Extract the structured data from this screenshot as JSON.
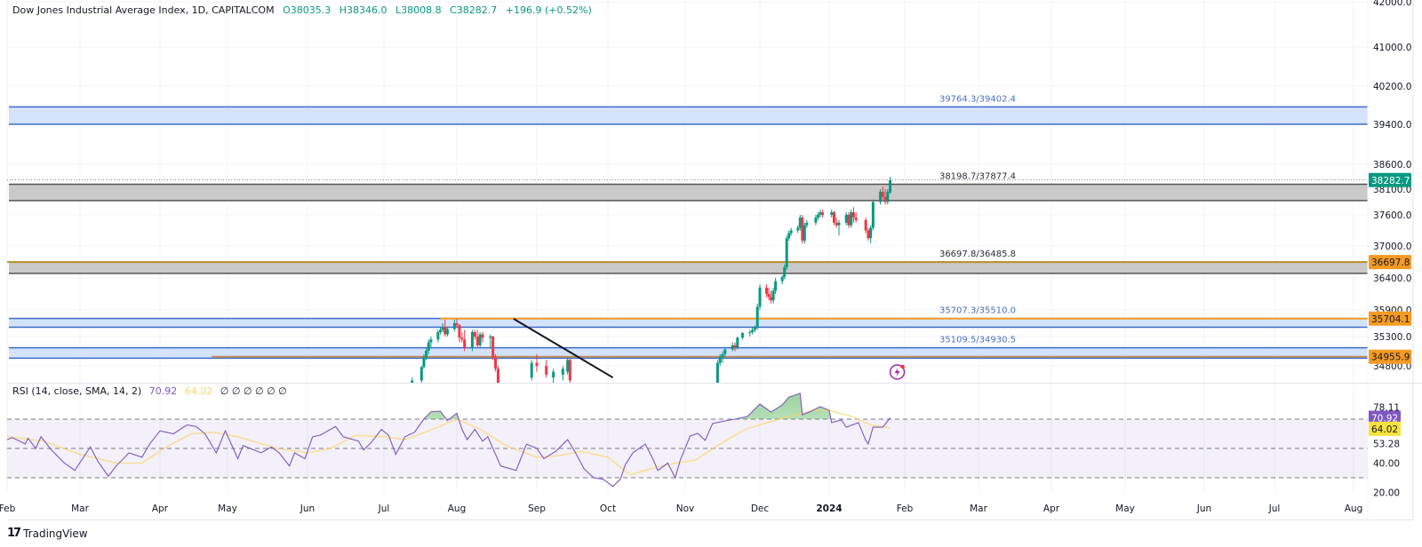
{
  "header": {
    "title": "Dow Jones Industrial Average Index, 1D, CAPITALCOM",
    "open": "O38035.3",
    "high": "H38346.0",
    "low": "L38008.8",
    "close": "C38282.7",
    "change": "+196.9 (+0.52%)"
  },
  "footer": {
    "brand": "TradingView",
    "logo": "TV"
  },
  "colors": {
    "up": "#089981",
    "down": "#f23645",
    "rsi": "#7e57c2",
    "rsi_sma": "#f5d76e",
    "zone_blue": "#3d6bc9",
    "zone_gray": "#555555",
    "orange": "#f59a23"
  },
  "chart_data": {
    "type": "candlestick",
    "title": "Dow Jones Industrial Average Index, 1D, CAPITALCOM",
    "price_axis": {
      "ticks": [
        "42000.0",
        "41000.0",
        "40200.0",
        "39400.0",
        "38600.0",
        "38100.0",
        "37600.0",
        "37000.0",
        "36400.0",
        "35900.0",
        "35300.0",
        "34800.0"
      ],
      "scale": "log-like",
      "range": [
        34600,
        42050
      ]
    },
    "time_axis": {
      "labels": [
        "Feb",
        "Mar",
        "Apr",
        "May",
        "Jun",
        "Jul",
        "Aug",
        "Sep",
        "Oct",
        "Nov",
        "Dec",
        "2024",
        "Feb",
        "Mar",
        "Apr",
        "May",
        "Jun",
        "Jul",
        "Aug"
      ]
    },
    "grid": true,
    "last_price": {
      "value": "38282.7",
      "color": "#089981"
    },
    "zones": [
      {
        "label": "39764.3/39402.4",
        "top": 39764.3,
        "bottom": 39402.4,
        "style": "blue"
      },
      {
        "label": "38198.7/37877.4",
        "top": 38198.7,
        "bottom": 37877.4,
        "style": "gray"
      },
      {
        "label": "36697.8/36485.8",
        "top": 36697.8,
        "bottom": 36485.8,
        "style": "gray"
      },
      {
        "label": "35707.3/35510.0",
        "top": 35707.3,
        "bottom": 35510.0,
        "style": "blue"
      },
      {
        "label": "35109.5/34930.5",
        "top": 35109.5,
        "bottom": 34930.5,
        "style": "blue"
      }
    ],
    "horizontal_lines": [
      {
        "price": 36697.8,
        "label": "36697.8",
        "color": "#b8902a",
        "from": "2023-02-01"
      },
      {
        "price": 35704.1,
        "label": "35704.1",
        "color": "#f59a23",
        "from": "2023-07-25"
      },
      {
        "price": 34955.9,
        "label": "34955.9",
        "color": "#c28d55",
        "from": "2023-04-24"
      }
    ],
    "trendline": {
      "from": [
        "2023-08-23",
        35700
      ],
      "to": [
        "2023-10-03",
        34600
      ],
      "color": "#131722"
    },
    "candles": [
      [
        "2023-07-13",
        34400,
        34600,
        34350,
        34550
      ],
      [
        "2023-07-17",
        34550,
        34800,
        34500,
        34780
      ],
      [
        "2023-07-18",
        34780,
        35000,
        34750,
        34950
      ],
      [
        "2023-07-19",
        34950,
        35100,
        34900,
        35060
      ],
      [
        "2023-07-20",
        35060,
        35250,
        35000,
        35200
      ],
      [
        "2023-07-21",
        35200,
        35300,
        35100,
        35250
      ],
      [
        "2023-07-24",
        35250,
        35450,
        35200,
        35400
      ],
      [
        "2023-07-25",
        35400,
        35500,
        35350,
        35450
      ],
      [
        "2023-07-26",
        35450,
        35600,
        35400,
        35520
      ],
      [
        "2023-07-27",
        35520,
        35680,
        35300,
        35350
      ],
      [
        "2023-07-28",
        35350,
        35500,
        35300,
        35470
      ],
      [
        "2023-07-31",
        35470,
        35680,
        35420,
        35600
      ],
      [
        "2023-08-01",
        35600,
        35700,
        35500,
        35560
      ],
      [
        "2023-08-02",
        35560,
        35580,
        35200,
        35280
      ],
      [
        "2023-08-03",
        35280,
        35400,
        35200,
        35250
      ],
      [
        "2023-08-04",
        35250,
        35450,
        35050,
        35100
      ],
      [
        "2023-08-07",
        35100,
        35450,
        35050,
        35400
      ],
      [
        "2023-08-08",
        35400,
        35450,
        35250,
        35300
      ],
      [
        "2023-08-09",
        35300,
        35450,
        35100,
        35150
      ],
      [
        "2023-08-10",
        35150,
        35400,
        35100,
        35350
      ],
      [
        "2023-08-11",
        35350,
        35400,
        35200,
        35280
      ],
      [
        "2023-08-14",
        35280,
        35350,
        35100,
        35300
      ],
      [
        "2023-08-15",
        35300,
        35320,
        34900,
        34950
      ],
      [
        "2023-08-16",
        34950,
        35000,
        34700,
        34750
      ],
      [
        "2023-08-17",
        34750,
        34800,
        34400,
        34500
      ],
      [
        "2023-08-30",
        34600,
        34900,
        34550,
        34850
      ],
      [
        "2023-09-01",
        34850,
        35000,
        34700,
        34800
      ],
      [
        "2023-09-05",
        34800,
        34900,
        34600,
        34650
      ],
      [
        "2023-09-08",
        34600,
        34750,
        34500,
        34700
      ],
      [
        "2023-09-12",
        34650,
        34800,
        34550,
        34750
      ],
      [
        "2023-09-14",
        34700,
        34950,
        34650,
        34900
      ],
      [
        "2023-09-15",
        34900,
        34920,
        34500,
        34550
      ],
      [
        "2023-11-14",
        34300,
        34900,
        34250,
        34850
      ],
      [
        "2023-11-15",
        34850,
        35000,
        34800,
        34950
      ],
      [
        "2023-11-16",
        34950,
        35050,
        34850,
        35000
      ],
      [
        "2023-11-17",
        35000,
        35100,
        34950,
        35080
      ],
      [
        "2023-11-20",
        35080,
        35200,
        35050,
        35150
      ],
      [
        "2023-11-21",
        35150,
        35200,
        35050,
        35100
      ],
      [
        "2023-11-22",
        35100,
        35300,
        35080,
        35280
      ],
      [
        "2023-11-24",
        35280,
        35400,
        35250,
        35380
      ],
      [
        "2023-11-27",
        35380,
        35450,
        35300,
        35400
      ],
      [
        "2023-11-28",
        35400,
        35500,
        35350,
        35450
      ],
      [
        "2023-11-29",
        35450,
        35550,
        35400,
        35500
      ],
      [
        "2023-11-30",
        35500,
        36000,
        35450,
        35950
      ],
      [
        "2023-12-01",
        35950,
        36300,
        35900,
        36250
      ],
      [
        "2023-12-04",
        36250,
        36300,
        36100,
        36150
      ],
      [
        "2023-12-05",
        36150,
        36250,
        36050,
        36100
      ],
      [
        "2023-12-06",
        36100,
        36200,
        36000,
        36050
      ],
      [
        "2023-12-07",
        36050,
        36250,
        36000,
        36200
      ],
      [
        "2023-12-08",
        36200,
        36400,
        36150,
        36350
      ],
      [
        "2023-12-11",
        36350,
        36450,
        36300,
        36420
      ],
      [
        "2023-12-12",
        36420,
        36650,
        36380,
        36600
      ],
      [
        "2023-12-13",
        36600,
        37200,
        36550,
        37150
      ],
      [
        "2023-12-14",
        37150,
        37300,
        37100,
        37250
      ],
      [
        "2023-12-15",
        37250,
        37350,
        37200,
        37300
      ],
      [
        "2023-12-18",
        37300,
        37400,
        37250,
        37350
      ],
      [
        "2023-12-19",
        37350,
        37600,
        37300,
        37550
      ],
      [
        "2023-12-20",
        37550,
        37600,
        37050,
        37100
      ],
      [
        "2023-12-21",
        37100,
        37450,
        37050,
        37400
      ],
      [
        "2023-12-22",
        37400,
        37500,
        37350,
        37450
      ],
      [
        "2023-12-26",
        37450,
        37600,
        37400,
        37550
      ],
      [
        "2023-12-27",
        37550,
        37650,
        37500,
        37600
      ],
      [
        "2023-12-28",
        37600,
        37700,
        37550,
        37650
      ],
      [
        "2023-12-29",
        37650,
        37700,
        37550,
        37600
      ],
      [
        "2024-01-02",
        37600,
        37700,
        37550,
        37650
      ],
      [
        "2024-01-03",
        37650,
        37680,
        37400,
        37450
      ],
      [
        "2024-01-04",
        37450,
        37550,
        37350,
        37400
      ],
      [
        "2024-01-05",
        37400,
        37500,
        37200,
        37450
      ],
      [
        "2024-01-08",
        37450,
        37650,
        37400,
        37600
      ],
      [
        "2024-01-09",
        37600,
        37650,
        37350,
        37400
      ],
      [
        "2024-01-10",
        37400,
        37700,
        37350,
        37650
      ],
      [
        "2024-01-11",
        37650,
        37750,
        37450,
        37550
      ],
      [
        "2024-01-12",
        37550,
        37650,
        37450,
        37500
      ],
      [
        "2024-01-16",
        37500,
        37550,
        37250,
        37300
      ],
      [
        "2024-01-17",
        37300,
        37350,
        37100,
        37150
      ],
      [
        "2024-01-18",
        37150,
        37400,
        37050,
        37350
      ],
      [
        "2024-01-19",
        37350,
        37900,
        37300,
        37850
      ],
      [
        "2024-01-22",
        37850,
        38100,
        37800,
        38050
      ],
      [
        "2024-01-23",
        38050,
        38150,
        37900,
        37950
      ],
      [
        "2024-01-24",
        37950,
        38100,
        37800,
        37850
      ],
      [
        "2024-01-25",
        37850,
        38100,
        37800,
        38050
      ],
      [
        "2024-01-26",
        38035.3,
        38346.0,
        38008.8,
        38282.7
      ]
    ],
    "rsi": {
      "legend": "RSI (14, close, SMA, 14, 2)",
      "value": "70.92",
      "sma_value": "64.02",
      "extra": "∅ ∅ ∅ ∅ ∅ ∅",
      "axis_ticks": [
        "78.11",
        "53.28",
        "40.00",
        "20.00"
      ],
      "levels": [
        70,
        50,
        30
      ],
      "range": [
        15,
        95
      ],
      "values": [
        [
          "2023-02-01",
          56
        ],
        [
          "2023-02-03",
          57.4
        ],
        [
          "2023-02-08",
          53
        ],
        [
          "2023-02-09",
          57
        ],
        [
          "2023-02-12",
          50
        ],
        [
          "2023-02-14",
          58
        ],
        [
          "2023-02-18",
          49
        ],
        [
          "2023-02-23",
          40
        ],
        [
          "2023-02-27",
          35
        ],
        [
          "2023-03-05",
          51
        ],
        [
          "2023-03-08",
          41
        ],
        [
          "2023-03-12",
          31
        ],
        [
          "2023-03-15",
          38
        ],
        [
          "2023-03-20",
          47
        ],
        [
          "2023-03-25",
          44
        ],
        [
          "2023-03-28",
          53
        ],
        [
          "2023-04-01",
          62
        ],
        [
          "2023-04-07",
          60
        ],
        [
          "2023-04-13",
          66
        ],
        [
          "2023-04-17",
          65
        ],
        [
          "2023-04-21",
          60
        ],
        [
          "2023-04-26",
          47
        ],
        [
          "2023-04-30",
          62
        ],
        [
          "2023-05-05",
          43
        ],
        [
          "2023-05-07",
          52
        ],
        [
          "2023-05-14",
          47
        ],
        [
          "2023-05-18",
          51
        ],
        [
          "2023-05-21",
          47
        ],
        [
          "2023-05-25",
          38
        ],
        [
          "2023-05-27",
          47
        ],
        [
          "2023-05-31",
          43
        ],
        [
          "2023-06-03",
          58
        ],
        [
          "2023-06-06",
          59
        ],
        [
          "2023-06-12",
          65
        ],
        [
          "2023-06-15",
          58
        ],
        [
          "2023-06-21",
          55
        ],
        [
          "2023-06-23",
          49
        ],
        [
          "2023-06-26",
          54
        ],
        [
          "2023-06-30",
          63
        ],
        [
          "2023-07-03",
          59
        ],
        [
          "2023-07-06",
          46
        ],
        [
          "2023-07-10",
          58
        ],
        [
          "2023-07-14",
          61
        ],
        [
          "2023-07-18",
          70
        ],
        [
          "2023-07-21",
          75
        ],
        [
          "2023-07-25",
          75.4
        ],
        [
          "2023-07-28",
          69
        ],
        [
          "2023-08-01",
          74
        ],
        [
          "2023-08-03",
          63
        ],
        [
          "2023-08-05",
          56
        ],
        [
          "2023-08-08",
          63
        ],
        [
          "2023-08-11",
          55
        ],
        [
          "2023-08-13",
          58
        ],
        [
          "2023-08-18",
          38
        ],
        [
          "2023-08-20",
          37
        ],
        [
          "2023-08-24",
          35
        ],
        [
          "2023-08-28",
          53
        ],
        [
          "2023-09-01",
          50
        ],
        [
          "2023-09-04",
          43
        ],
        [
          "2023-09-09",
          48
        ],
        [
          "2023-09-14",
          56
        ],
        [
          "2023-09-17",
          48
        ],
        [
          "2023-09-21",
          36
        ],
        [
          "2023-09-25",
          30
        ],
        [
          "2023-09-29",
          29
        ],
        [
          "2023-10-03",
          24
        ],
        [
          "2023-10-06",
          29
        ],
        [
          "2023-10-08",
          39
        ],
        [
          "2023-10-11",
          47
        ],
        [
          "2023-10-16",
          53
        ],
        [
          "2023-10-19",
          43
        ],
        [
          "2023-10-21",
          35
        ],
        [
          "2023-10-25",
          40
        ],
        [
          "2023-10-28",
          30
        ],
        [
          "2023-10-30",
          42
        ],
        [
          "2023-11-03",
          58.5
        ],
        [
          "2023-11-06",
          60.3
        ],
        [
          "2023-11-09",
          55.5
        ],
        [
          "2023-11-12",
          67
        ],
        [
          "2023-11-17",
          68.8
        ],
        [
          "2023-11-21",
          70
        ],
        [
          "2023-11-26",
          71.8
        ],
        [
          "2023-12-01",
          80.3
        ],
        [
          "2023-12-06",
          74.8
        ],
        [
          "2023-12-11",
          79.7
        ],
        [
          "2023-12-14",
          85
        ],
        [
          "2023-12-19",
          87.6
        ],
        [
          "2023-12-20",
          73
        ],
        [
          "2023-12-23",
          74.8
        ],
        [
          "2023-12-28",
          78.5
        ],
        [
          "2024-01-01",
          76
        ],
        [
          "2024-01-02",
          67.6
        ],
        [
          "2024-01-06",
          69.4
        ],
        [
          "2024-01-08",
          64.5
        ],
        [
          "2024-01-13",
          67.6
        ],
        [
          "2024-01-16",
          55.5
        ],
        [
          "2024-01-17",
          53
        ],
        [
          "2024-01-19",
          64.5
        ],
        [
          "2024-01-23",
          64.5
        ],
        [
          "2024-01-26",
          70.92
        ]
      ],
      "sma": [
        [
          "2023-02-01",
          58
        ],
        [
          "2023-02-15",
          55
        ],
        [
          "2023-03-01",
          46
        ],
        [
          "2023-03-15",
          40
        ],
        [
          "2023-03-25",
          40
        ],
        [
          "2023-04-05",
          52
        ],
        [
          "2023-04-15",
          60
        ],
        [
          "2023-04-25",
          61
        ],
        [
          "2023-05-05",
          58
        ],
        [
          "2023-05-20",
          50
        ],
        [
          "2023-06-01",
          47
        ],
        [
          "2023-06-10",
          50
        ],
        [
          "2023-06-20",
          59
        ],
        [
          "2023-07-01",
          58
        ],
        [
          "2023-07-10",
          56
        ],
        [
          "2023-07-20",
          62
        ],
        [
          "2023-08-01",
          70
        ],
        [
          "2023-08-10",
          63
        ],
        [
          "2023-08-20",
          52
        ],
        [
          "2023-09-01",
          44
        ],
        [
          "2023-09-10",
          45
        ],
        [
          "2023-09-20",
          48
        ],
        [
          "2023-10-01",
          44
        ],
        [
          "2023-10-10",
          32
        ],
        [
          "2023-10-20",
          37
        ],
        [
          "2023-10-28",
          40
        ],
        [
          "2023-11-05",
          42
        ],
        [
          "2023-11-15",
          53
        ],
        [
          "2023-11-25",
          63
        ],
        [
          "2023-12-05",
          68
        ],
        [
          "2023-12-15",
          72
        ],
        [
          "2023-12-25",
          76
        ],
        [
          "2024-01-01",
          76
        ],
        [
          "2024-01-10",
          72
        ],
        [
          "2024-01-18",
          66
        ],
        [
          "2024-01-26",
          64.02
        ]
      ]
    },
    "annotations": [
      {
        "icon": "lightning-icon",
        "date": "2024-01-26"
      }
    ]
  }
}
